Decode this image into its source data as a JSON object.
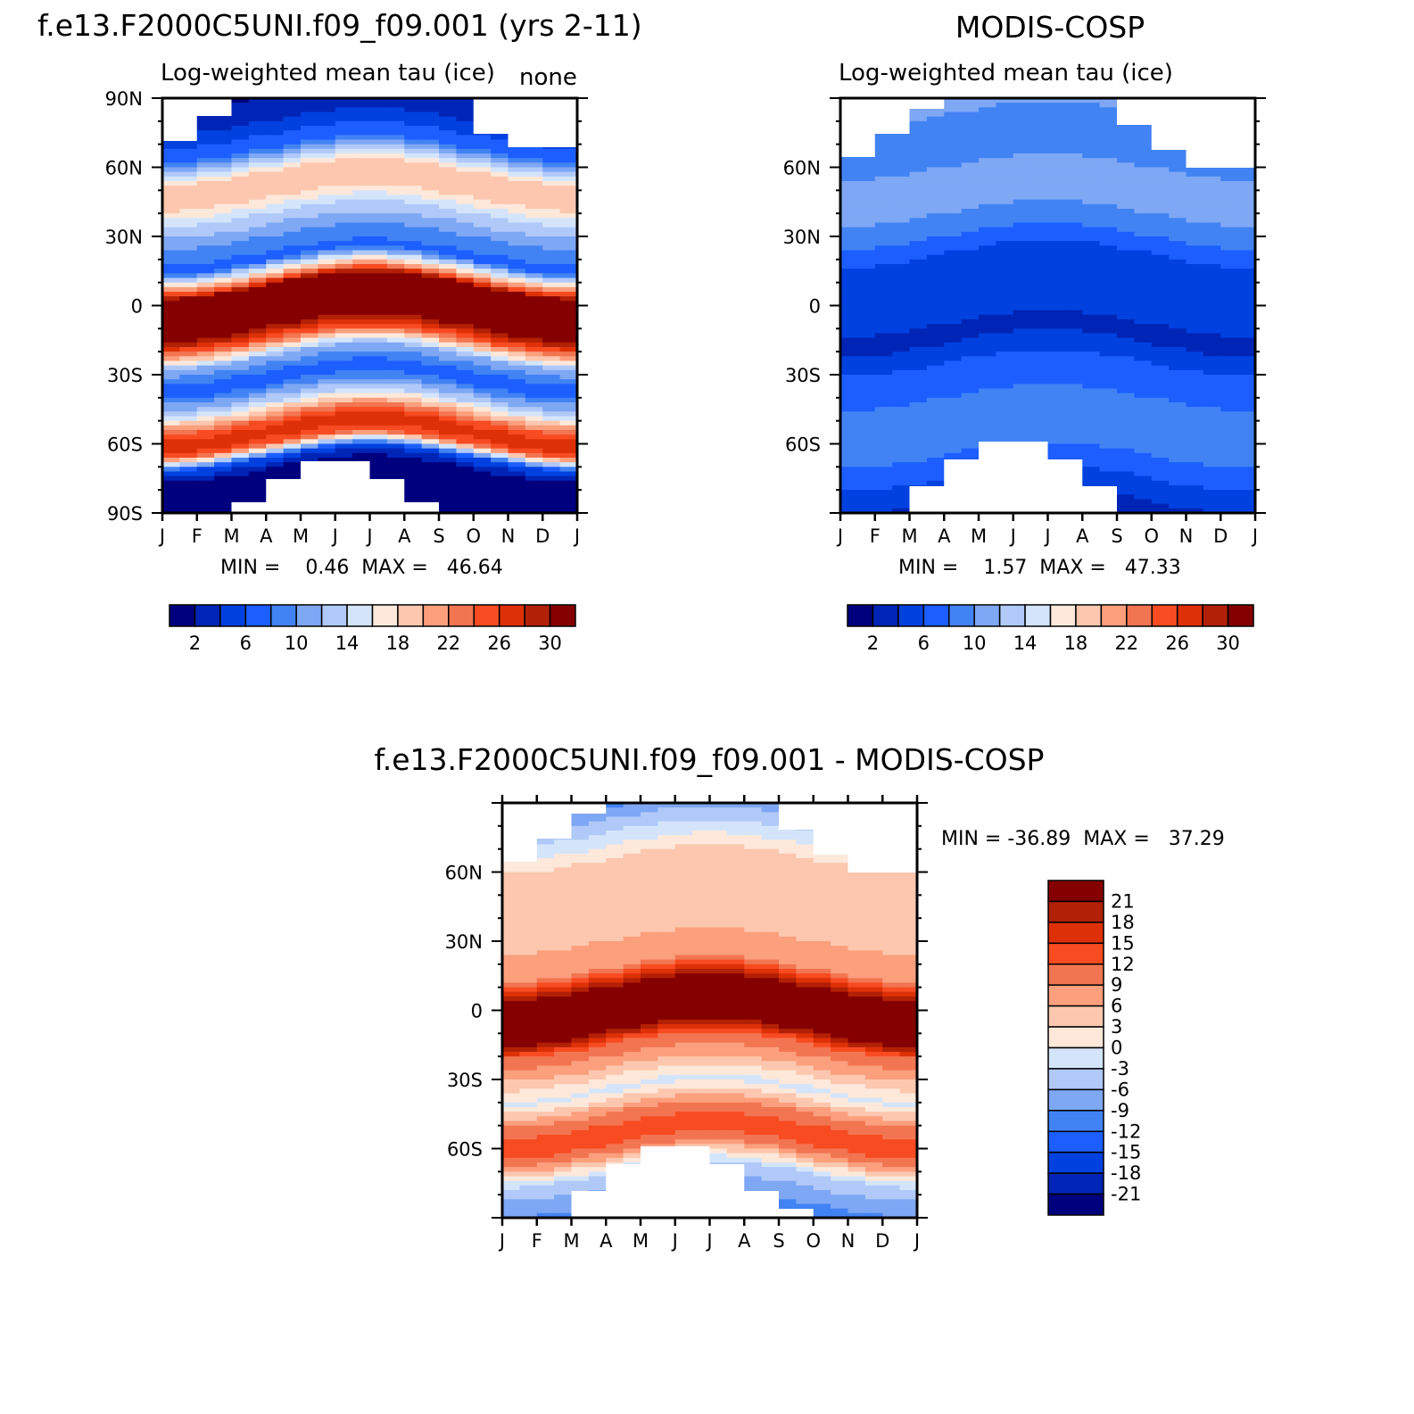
{
  "chart_data": [
    {
      "type": "heatmap",
      "title": "f.e13.F2000C5UNI.f09_f09.001 (yrs 2-11)",
      "subtitle": "Log-weighted mean tau (ice)",
      "units": "none",
      "x_ticklabels": [
        "J",
        "F",
        "M",
        "A",
        "M",
        "J",
        "J",
        "A",
        "S",
        "O",
        "N",
        "D",
        "J"
      ],
      "y_ticklabels": [
        "90N",
        "60N",
        "30N",
        "0",
        "30S",
        "60S",
        "90S"
      ],
      "ylim": [
        -90,
        90
      ],
      "stats": "MIN =    0.46  MAX =   46.64",
      "colorbar_labels": [
        "2",
        "6",
        "10",
        "14",
        "18",
        "22",
        "26",
        "30"
      ],
      "colorbar_levels": [
        0,
        2,
        4,
        6,
        8,
        10,
        12,
        14,
        16,
        18,
        20,
        22,
        24,
        26,
        28,
        30,
        32
      ],
      "colorbar_colors": [
        "#00007f",
        "#0024b5",
        "#0041e0",
        "#1c5eff",
        "#4283f4",
        "#7ea7f4",
        "#b0c9f8",
        "#d4e5fb",
        "#fde8da",
        "#fcc7ae",
        "#fb9f7d",
        "#f27551",
        "#f84b22",
        "#de3006",
        "#b22005",
        "#850000"
      ],
      "band_profile": [
        {
          "lat": 90,
          "value": 2
        },
        {
          "lat": 80,
          "value": 4
        },
        {
          "lat": 68,
          "value": 8
        },
        {
          "lat": 58,
          "value": 18
        },
        {
          "lat": 50,
          "value": 20
        },
        {
          "lat": 40,
          "value": 14
        },
        {
          "lat": 30,
          "value": 10
        },
        {
          "lat": 20,
          "value": 7
        },
        {
          "lat": 12,
          "value": 22
        },
        {
          "lat": 8,
          "value": 32
        },
        {
          "lat": 0,
          "value": 30
        },
        {
          "lat": -8,
          "value": 32
        },
        {
          "lat": -15,
          "value": 24
        },
        {
          "lat": -22,
          "value": 12
        },
        {
          "lat": -32,
          "value": 6
        },
        {
          "lat": -42,
          "value": 14
        },
        {
          "lat": -50,
          "value": 24
        },
        {
          "lat": -55,
          "value": 28
        },
        {
          "lat": -60,
          "value": 24
        },
        {
          "lat": -66,
          "value": 6
        },
        {
          "lat": -72,
          "value": 1
        },
        {
          "lat": -90,
          "value": 0
        }
      ]
    },
    {
      "type": "heatmap",
      "title": "MODIS-COSP",
      "subtitle": "Log-weighted mean tau (ice)",
      "x_ticklabels": [
        "J",
        "F",
        "M",
        "A",
        "M",
        "J",
        "J",
        "A",
        "S",
        "O",
        "N",
        "D",
        "J"
      ],
      "y_ticklabels": [
        "60N",
        "30N",
        "0",
        "30S",
        "60S"
      ],
      "ylim": [
        -90,
        90
      ],
      "stats": "MIN =    1.57  MAX =   47.33",
      "colorbar_labels": [
        "2",
        "6",
        "10",
        "14",
        "18",
        "22",
        "26",
        "30"
      ],
      "colorbar_levels": [
        0,
        2,
        4,
        6,
        8,
        10,
        12,
        14,
        16,
        18,
        20,
        22,
        24,
        26,
        28,
        30,
        32
      ],
      "colorbar_colors": [
        "#00007f",
        "#0024b5",
        "#0041e0",
        "#1c5eff",
        "#4283f4",
        "#7ea7f4",
        "#b0c9f8",
        "#d4e5fb",
        "#fde8da",
        "#fcc7ae",
        "#fb9f7d",
        "#f27551",
        "#f84b22",
        "#de3006",
        "#b22005",
        "#850000"
      ],
      "band_profile": [
        {
          "lat": 90,
          "value": 12
        },
        {
          "lat": 75,
          "value": 8
        },
        {
          "lat": 60,
          "value": 10
        },
        {
          "lat": 50,
          "value": 12
        },
        {
          "lat": 40,
          "value": 10
        },
        {
          "lat": 30,
          "value": 8
        },
        {
          "lat": 15,
          "value": 4
        },
        {
          "lat": 0,
          "value": 6
        },
        {
          "lat": -12,
          "value": 3
        },
        {
          "lat": -25,
          "value": 6
        },
        {
          "lat": -40,
          "value": 8
        },
        {
          "lat": -55,
          "value": 10
        },
        {
          "lat": -70,
          "value": 7
        },
        {
          "lat": -85,
          "value": 4
        },
        {
          "lat": -90,
          "value": 2
        }
      ]
    },
    {
      "type": "heatmap",
      "title": "f.e13.F2000C5UNI.f09_f09.001 - MODIS-COSP",
      "x_ticklabels": [
        "J",
        "F",
        "M",
        "A",
        "M",
        "J",
        "J",
        "A",
        "S",
        "O",
        "N",
        "D",
        "J"
      ],
      "y_ticklabels": [
        "60N",
        "30N",
        "0",
        "30S",
        "60S"
      ],
      "ylim": [
        -90,
        90
      ],
      "stats": "MIN = -36.89  MAX =   37.29",
      "colorbar_labels": [
        "21",
        "18",
        "15",
        "12",
        "9",
        "6",
        "3",
        "0",
        "-3",
        "-6",
        "-9",
        "-12",
        "-15",
        "-18",
        "-21"
      ],
      "colorbar_levels": [
        -24,
        -21,
        -18,
        -15,
        -12,
        -9,
        -6,
        -3,
        0,
        3,
        6,
        9,
        12,
        15,
        18,
        21,
        24
      ],
      "colorbar_colors": [
        "#00007f",
        "#0024b5",
        "#0041e0",
        "#1c5eff",
        "#4283f4",
        "#7ea7f4",
        "#b0c9f8",
        "#d4e5fb",
        "#fde8da",
        "#fcc7ae",
        "#fb9f7d",
        "#f27551",
        "#f84b22",
        "#de3006",
        "#b22005",
        "#850000"
      ],
      "band_profile": [
        {
          "lat": 90,
          "value": -10
        },
        {
          "lat": 75,
          "value": -2
        },
        {
          "lat": 60,
          "value": 6
        },
        {
          "lat": 45,
          "value": 4
        },
        {
          "lat": 30,
          "value": 6
        },
        {
          "lat": 18,
          "value": 9
        },
        {
          "lat": 8,
          "value": 24
        },
        {
          "lat": 0,
          "value": 24
        },
        {
          "lat": -8,
          "value": 24
        },
        {
          "lat": -15,
          "value": 12
        },
        {
          "lat": -25,
          "value": 6
        },
        {
          "lat": -35,
          "value": -1
        },
        {
          "lat": -45,
          "value": 9
        },
        {
          "lat": -55,
          "value": 15
        },
        {
          "lat": -62,
          "value": 9
        },
        {
          "lat": -72,
          "value": -4
        },
        {
          "lat": -82,
          "value": -8
        },
        {
          "lat": -90,
          "value": -12
        }
      ]
    }
  ]
}
